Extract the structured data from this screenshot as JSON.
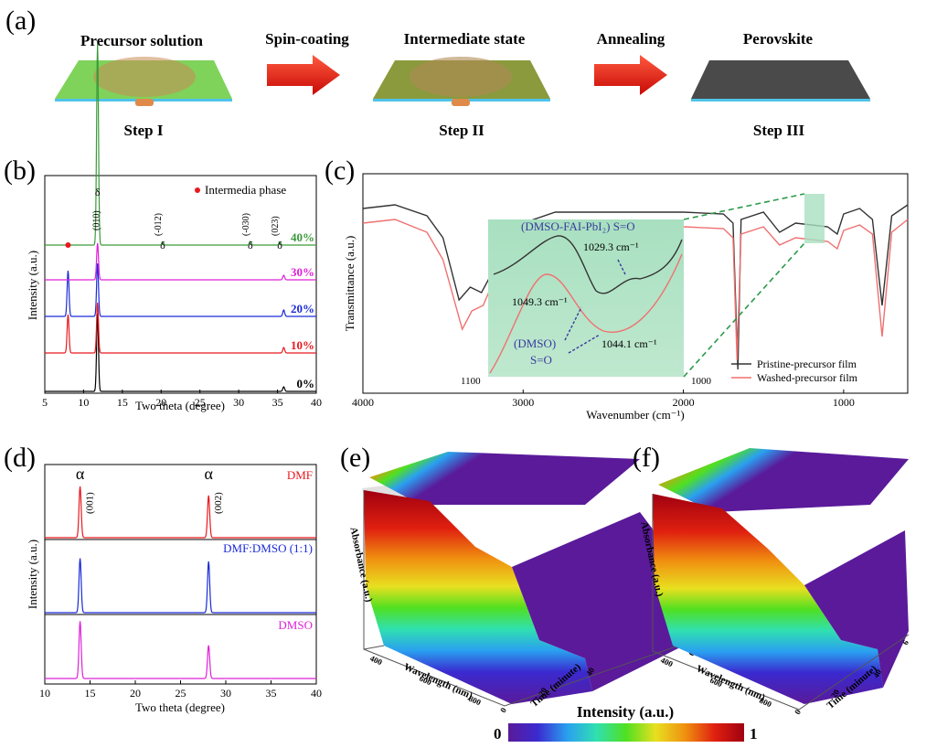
{
  "panels": {
    "a": "(a)",
    "b": "(b)",
    "c": "(c)",
    "d": "(d)",
    "e": "(e)",
    "f": "(f)"
  },
  "scheme": {
    "stages": [
      "Precursor solution",
      "Intermediate state",
      "Perovskite"
    ],
    "arrows": [
      "Spin-coating",
      "Annealing"
    ],
    "steps": [
      "Step I",
      "Step II",
      "Step III"
    ],
    "colors": {
      "arrow": "#e8140f",
      "film_precursor": "#7fd35a",
      "film_intermediate": "#8a9a3c",
      "film_perovskite": "#4a4a4a",
      "substrate": "#4fc3e8",
      "droplet": "#e08a4a"
    }
  },
  "colorbar": {
    "title": "Intensity (a.u.)",
    "min_label": "0",
    "max_label": "1",
    "stops": [
      "#5a1a9a",
      "#3a2ad0",
      "#2aa0f0",
      "#30e0b0",
      "#50e020",
      "#e8e020",
      "#f09010",
      "#e02010",
      "#a00010"
    ]
  },
  "surfaces": {
    "z_label": "Absorbance (a.u.)",
    "x_label": "Wavelength (nm)",
    "y_label": "Time (minute)",
    "x_ticks": [
      "400",
      "600",
      "800"
    ],
    "y_ticks": [
      "0",
      "20",
      "40"
    ],
    "far_ticks": [
      "6"
    ]
  },
  "chart_data": [
    {
      "type": "line",
      "panel": "b",
      "xlabel": "Two theta (degree)",
      "ylabel": "Intensity (a.u.)",
      "xlim": [
        5,
        40
      ],
      "xticks": [
        "5",
        "10",
        "15",
        "20",
        "25",
        "30",
        "35",
        "40"
      ],
      "legend": {
        "marker": "#e8191e",
        "text": "Intermedia phase",
        "position": "top-right"
      },
      "annotations": [
        {
          "symbol": "δ",
          "label": "(010)",
          "x": 11.8
        },
        {
          "symbol": "δ",
          "label": "(-012)",
          "x": 20.2
        },
        {
          "symbol": "δ",
          "label": "(-030)",
          "x": 31.5
        },
        {
          "symbol": "δ",
          "label": "(023)",
          "x": 35.3
        }
      ],
      "intermediate_marker_x": 8.0,
      "series": [
        {
          "name": "0%",
          "color": "#000000",
          "peaks": [
            [
              11.8,
              0.85
            ],
            [
              35.8,
              0.05
            ]
          ]
        },
        {
          "name": "10%",
          "color": "#e8191e",
          "peaks": [
            [
              8.0,
              0.42
            ],
            [
              11.8,
              0.55
            ],
            [
              35.8,
              0.06
            ]
          ]
        },
        {
          "name": "20%",
          "color": "#1a2ad8",
          "peaks": [
            [
              8.0,
              0.5
            ],
            [
              11.8,
              0.58
            ],
            [
              35.8,
              0.07
            ]
          ]
        },
        {
          "name": "30%",
          "color": "#e020d8",
          "peaks": [
            [
              11.8,
              0.4
            ],
            [
              35.8,
              0.05
            ]
          ]
        },
        {
          "name": "40%",
          "color": "#3a9a3a",
          "peaks": [
            [
              11.8,
              2.2
            ],
            [
              20.2,
              0.03
            ],
            [
              31.5,
              0.04
            ],
            [
              35.3,
              0.03
            ]
          ]
        }
      ]
    },
    {
      "type": "line",
      "panel": "c",
      "xlabel": "Wavenumber (cm⁻¹)",
      "ylabel": "Transmittance (a.u.)",
      "xlim": [
        4000,
        600
      ],
      "xticks": [
        "4000",
        "3000",
        "2000",
        "1000"
      ],
      "legend_position": "bottom-right",
      "series": [
        {
          "name": "Pristine-precursor film",
          "color": "#333333",
          "points": [
            [
              4000,
              0.88
            ],
            [
              3800,
              0.9
            ],
            [
              3600,
              0.84
            ],
            [
              3500,
              0.72
            ],
            [
              3400,
              0.38
            ],
            [
              3330,
              0.45
            ],
            [
              3260,
              0.42
            ],
            [
              3150,
              0.6
            ],
            [
              3000,
              0.8
            ],
            [
              2800,
              0.86
            ],
            [
              2000,
              0.86
            ],
            [
              1750,
              0.85
            ],
            [
              1690,
              0.8
            ],
            [
              1660,
              0.0
            ],
            [
              1640,
              0.82
            ],
            [
              1500,
              0.86
            ],
            [
              1400,
              0.75
            ],
            [
              1300,
              0.8
            ],
            [
              1100,
              0.78
            ],
            [
              1040,
              0.74
            ],
            [
              1000,
              0.85
            ],
            [
              900,
              0.88
            ],
            [
              820,
              0.82
            ],
            [
              760,
              0.35
            ],
            [
              700,
              0.84
            ],
            [
              600,
              0.9
            ]
          ]
        },
        {
          "name": "Washed-precursor film",
          "color": "#f07070",
          "points": [
            [
              4000,
              0.8
            ],
            [
              3800,
              0.82
            ],
            [
              3600,
              0.75
            ],
            [
              3500,
              0.6
            ],
            [
              3380,
              0.22
            ],
            [
              3320,
              0.32
            ],
            [
              3250,
              0.35
            ],
            [
              3150,
              0.55
            ],
            [
              3000,
              0.74
            ],
            [
              2800,
              0.78
            ],
            [
              2000,
              0.78
            ],
            [
              1750,
              0.77
            ],
            [
              1690,
              0.72
            ],
            [
              1665,
              0.05
            ],
            [
              1640,
              0.74
            ],
            [
              1500,
              0.78
            ],
            [
              1400,
              0.68
            ],
            [
              1300,
              0.72
            ],
            [
              1100,
              0.7
            ],
            [
              1040,
              0.66
            ],
            [
              1000,
              0.76
            ],
            [
              900,
              0.79
            ],
            [
              820,
              0.74
            ],
            [
              760,
              0.18
            ],
            [
              700,
              0.75
            ],
            [
              600,
              0.82
            ]
          ]
        }
      ],
      "inset": {
        "xlim": [
          1100,
          1000
        ],
        "xlabels": [
          "1100",
          "1000"
        ],
        "annotations": [
          "(DMSO-FAI-PbI₂)  S=O",
          "1029.3 cm⁻¹",
          "1049.3 cm⁻¹",
          "(DMSO)",
          "S=O",
          "1044.1 cm⁻¹"
        ],
        "fill": "#a8e0c0"
      }
    },
    {
      "type": "line",
      "panel": "d",
      "xlabel": "Two theta (degree)",
      "ylabel": "Intensity (a.u.)",
      "xlim": [
        10,
        40
      ],
      "xticks": [
        "10",
        "15",
        "20",
        "25",
        "30",
        "35",
        "40"
      ],
      "annotations": [
        {
          "symbol": "α",
          "label": "(001)",
          "x": 13.9
        },
        {
          "symbol": "α",
          "label": "(002)",
          "x": 28.1
        }
      ],
      "series": [
        {
          "name": "DMF",
          "color": "#e8191e",
          "peaks": [
            [
              13.9,
              0.85
            ],
            [
              28.1,
              0.7
            ]
          ]
        },
        {
          "name": "DMF:DMSO (1:1)",
          "color": "#1a2ad8",
          "peaks": [
            [
              13.9,
              0.9
            ],
            [
              28.1,
              0.85
            ]
          ]
        },
        {
          "name": "DMSO",
          "color": "#e020d8",
          "peaks": [
            [
              13.9,
              0.95
            ],
            [
              28.1,
              0.55
            ]
          ]
        }
      ]
    }
  ]
}
